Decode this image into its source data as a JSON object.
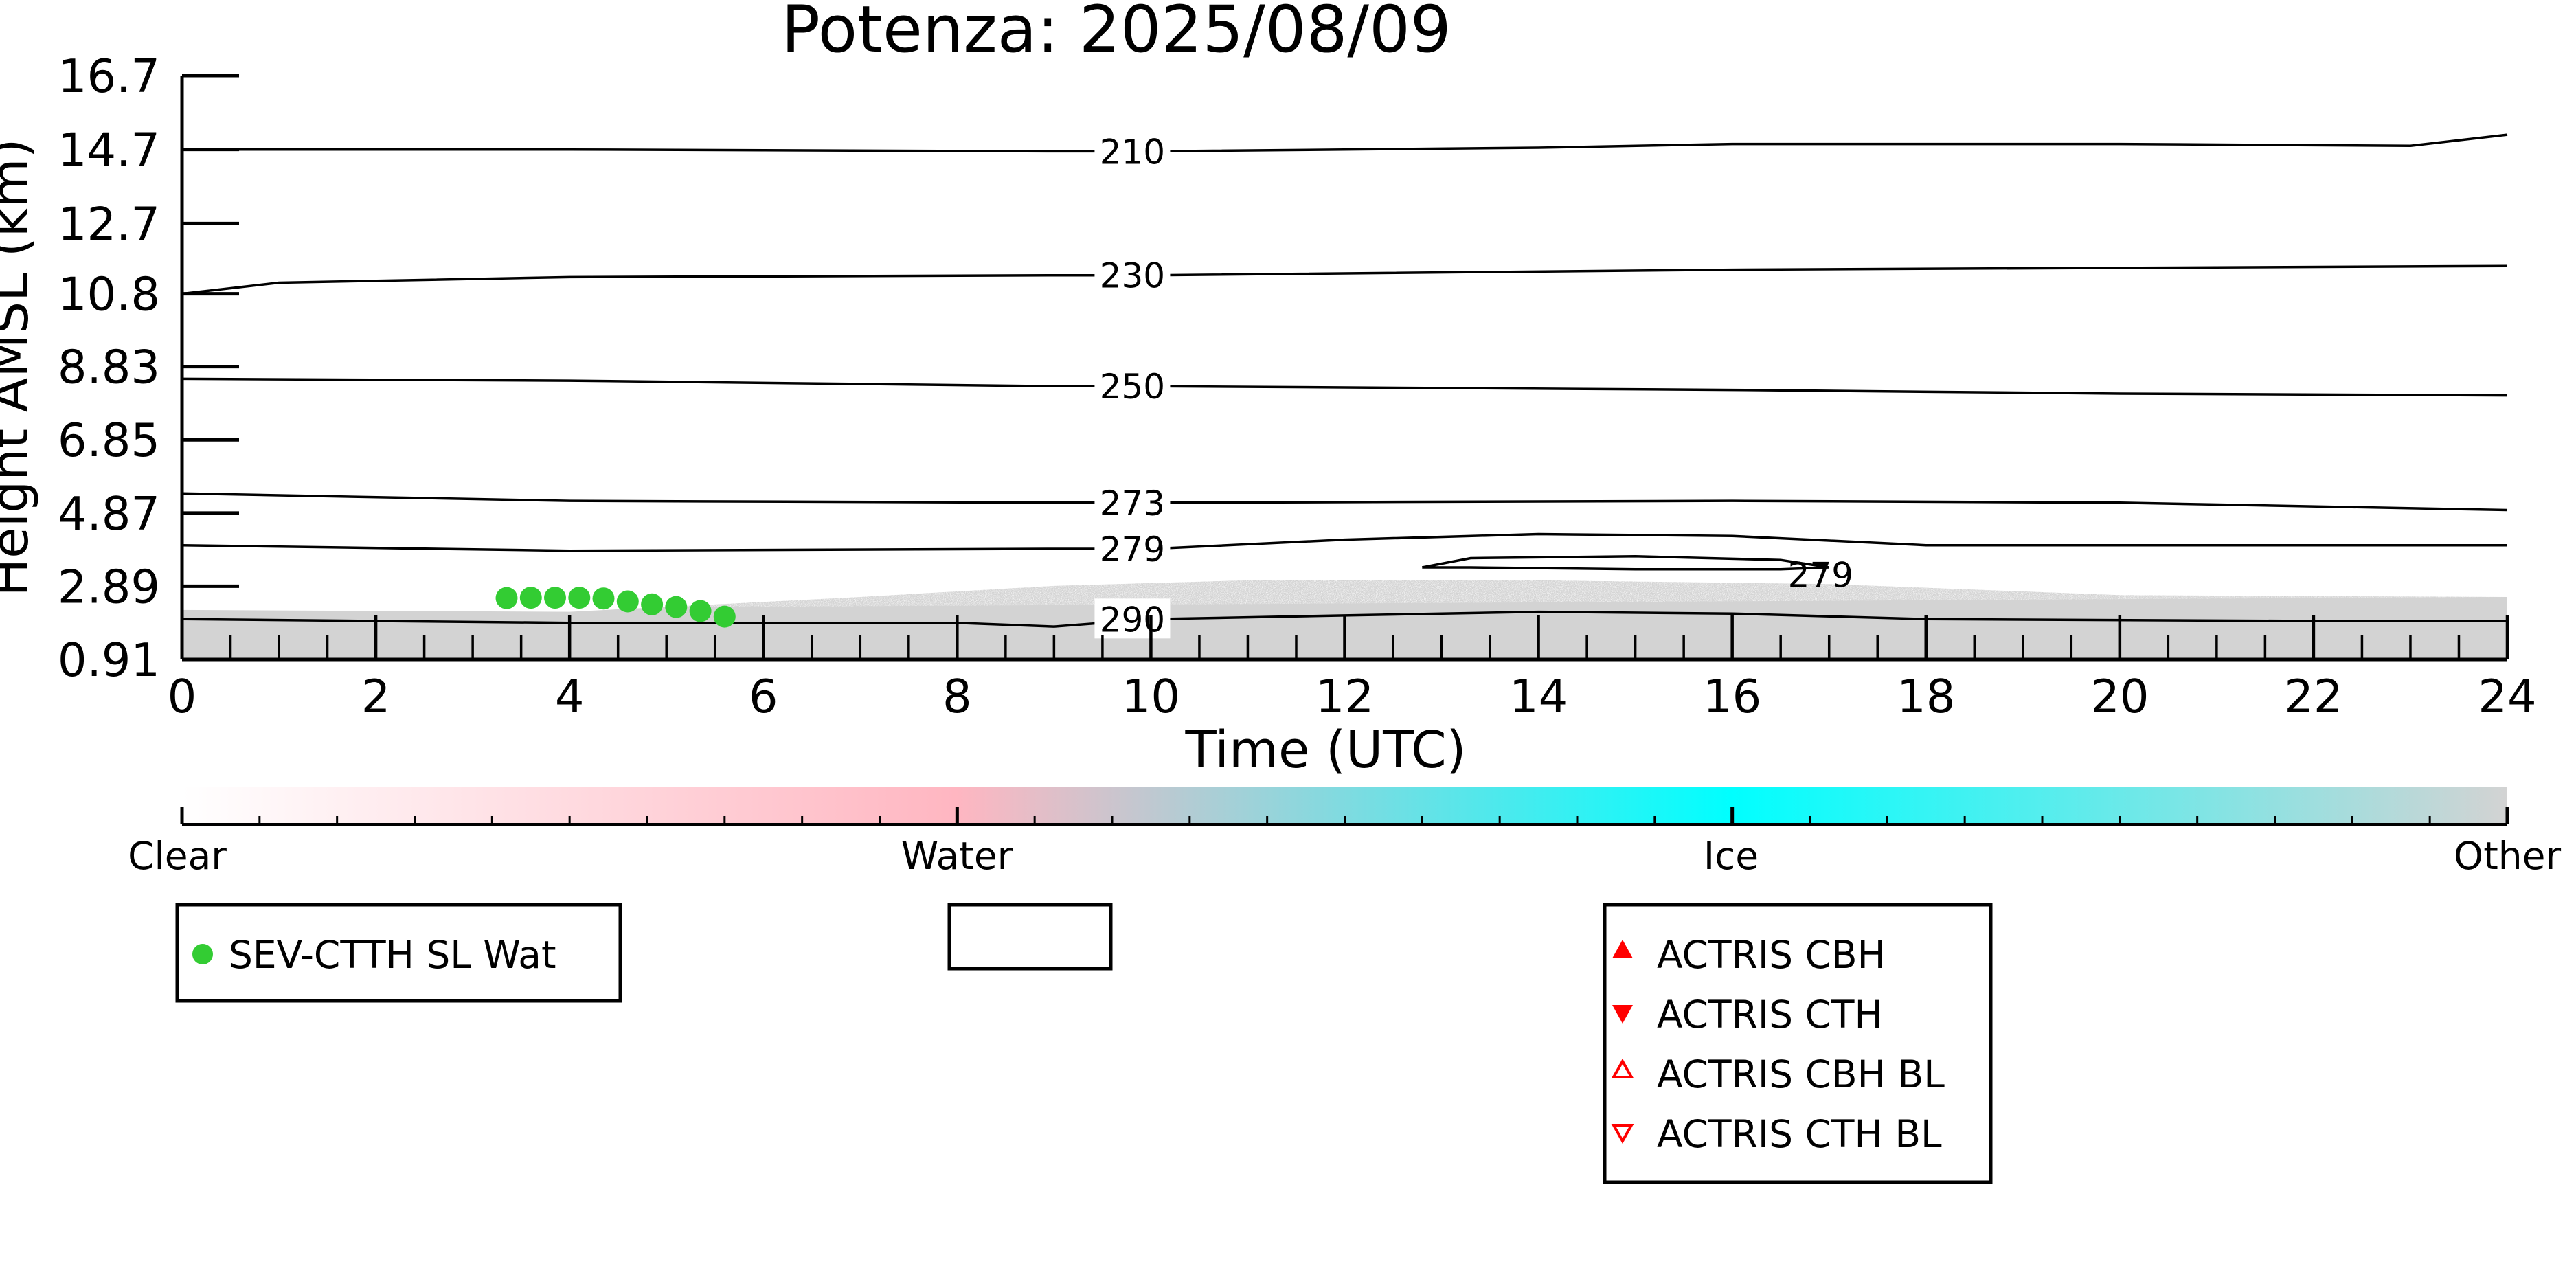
{
  "chart_data": {
    "type": "line",
    "title": "Potenza: 2025/08/09",
    "xlabel": "Time (UTC)",
    "ylabel": "Height AMSL (km)",
    "xlim": [
      0,
      24
    ],
    "ylim": [
      0.91,
      16.7
    ],
    "x_ticks": [
      0,
      2,
      4,
      6,
      8,
      10,
      12,
      14,
      16,
      18,
      20,
      22,
      24
    ],
    "y_ticks": [
      0.91,
      2.89,
      4.87,
      6.85,
      8.83,
      10.8,
      12.7,
      14.7,
      16.7
    ],
    "y_tick_labels": [
      "0.91",
      "2.89",
      "4.87",
      "6.85",
      "8.83",
      "10.8",
      "12.7",
      "14.7",
      "16.7"
    ],
    "contours": [
      {
        "label": "210",
        "label_x": 10.0,
        "points": [
          [
            0,
            14.7
          ],
          [
            4,
            14.7
          ],
          [
            9,
            14.65
          ],
          [
            10,
            14.65
          ],
          [
            14,
            14.75
          ],
          [
            16,
            14.85
          ],
          [
            20,
            14.85
          ],
          [
            23,
            14.8
          ],
          [
            24,
            15.1
          ]
        ]
      },
      {
        "label": "230",
        "label_x": 10.0,
        "points": [
          [
            0,
            10.8
          ],
          [
            1,
            11.1
          ],
          [
            4,
            11.25
          ],
          [
            9,
            11.3
          ],
          [
            10,
            11.3
          ],
          [
            16,
            11.45
          ],
          [
            20,
            11.5
          ],
          [
            24,
            11.55
          ]
        ]
      },
      {
        "label": "250",
        "label_x": 10.0,
        "points": [
          [
            0,
            8.5
          ],
          [
            4,
            8.45
          ],
          [
            9,
            8.3
          ],
          [
            10,
            8.3
          ],
          [
            16,
            8.2
          ],
          [
            20,
            8.1
          ],
          [
            24,
            8.05
          ]
        ]
      },
      {
        "label": "273",
        "label_x": 10.0,
        "points": [
          [
            0,
            5.4
          ],
          [
            4,
            5.2
          ],
          [
            9,
            5.15
          ],
          [
            10,
            5.15
          ],
          [
            16,
            5.2
          ],
          [
            20,
            5.15
          ],
          [
            24,
            4.95
          ]
        ]
      },
      {
        "label": "279",
        "label_x": 10.0,
        "points": [
          [
            0,
            4.0
          ],
          [
            4,
            3.85
          ],
          [
            9,
            3.9
          ],
          [
            10,
            3.9
          ],
          [
            12,
            4.15
          ],
          [
            14,
            4.3
          ],
          [
            16,
            4.25
          ],
          [
            18,
            4.0
          ],
          [
            22,
            4.0
          ],
          [
            24,
            4.0
          ]
        ]
      },
      {
        "label": "290",
        "label_x": 10.0,
        "points": [
          [
            0,
            2.0
          ],
          [
            4,
            1.9
          ],
          [
            8,
            1.9
          ],
          [
            9,
            1.8
          ],
          [
            10,
            2.0
          ],
          [
            12,
            2.1
          ],
          [
            14,
            2.2
          ],
          [
            16,
            2.15
          ],
          [
            18,
            2.0
          ],
          [
            22,
            1.95
          ],
          [
            24,
            1.95
          ]
        ]
      }
    ],
    "closed_contours": [
      {
        "label": "279",
        "label_x": 16.7,
        "label_y": 3.2,
        "points": [
          [
            12.8,
            3.4
          ],
          [
            13.3,
            3.65
          ],
          [
            15,
            3.7
          ],
          [
            16.5,
            3.6
          ],
          [
            17,
            3.4
          ],
          [
            16.5,
            3.35
          ],
          [
            15,
            3.35
          ],
          [
            13.3,
            3.4
          ],
          [
            12.8,
            3.4
          ]
        ]
      }
    ],
    "series": [
      {
        "name": "SEV-CTTH SL Wat",
        "marker": "circle",
        "color": "#33cc33",
        "x": [
          3.35,
          3.6,
          3.85,
          4.1,
          4.35,
          4.6,
          4.85,
          5.1,
          5.35,
          5.6
        ],
        "y": [
          2.57,
          2.58,
          2.58,
          2.58,
          2.56,
          2.48,
          2.4,
          2.33,
          2.22,
          2.07
        ]
      }
    ],
    "colorbar": {
      "categories": [
        "Clear",
        "Water",
        "Ice",
        "Other"
      ],
      "colors": [
        "#ffffff",
        "#ffb6c1",
        "#00ffff",
        "#d3d3d3"
      ]
    },
    "legend": [
      {
        "label": "SEV-CTTH SL Wat",
        "marker": "circle",
        "color": "#33cc33"
      }
    ],
    "legend_empty": true,
    "legend_actris": [
      {
        "label": "ACTRIS CBH",
        "marker": "triangle-up-filled",
        "color": "#ff0000"
      },
      {
        "label": "ACTRIS CTH",
        "marker": "triangle-down-filled",
        "color": "#ff0000"
      },
      {
        "label": "ACTRIS CBH BL",
        "marker": "triangle-up-open",
        "color": "#ff0000"
      },
      {
        "label": "ACTRIS CTH BL",
        "marker": "triangle-down-open",
        "color": "#ff0000"
      }
    ],
    "grid": false
  }
}
